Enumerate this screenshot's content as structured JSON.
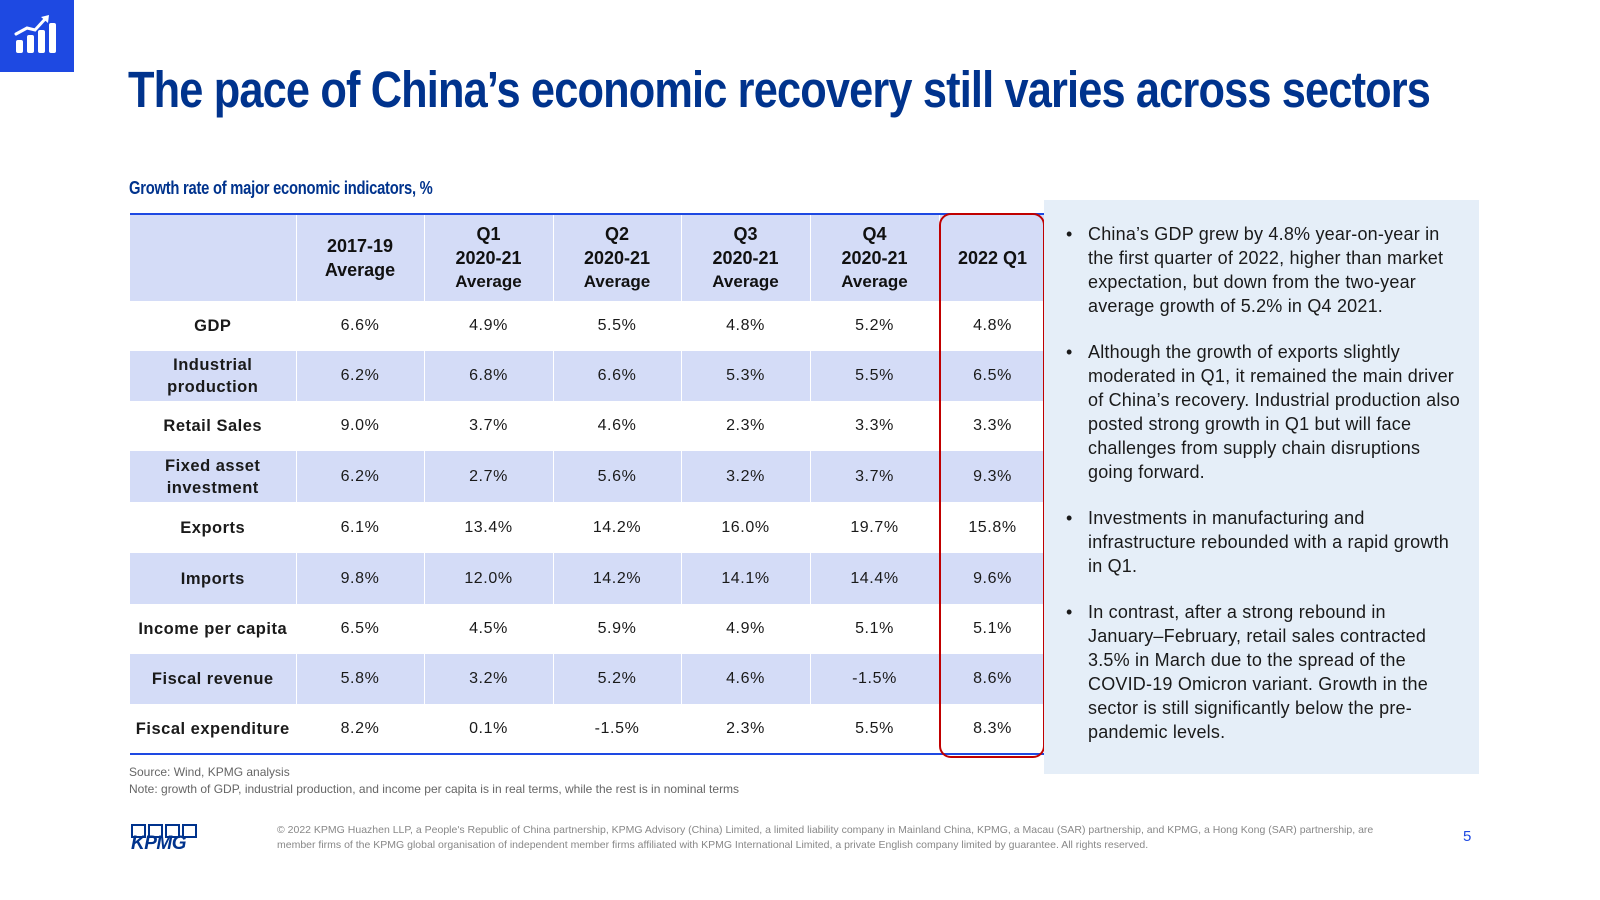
{
  "title": "The pace of China’s economic recovery still varies across sectors",
  "subtitle": "Growth rate of major economic indicators, %",
  "table": {
    "headers": [
      {
        "line1": "",
        "line2": "",
        "line3": ""
      },
      {
        "line1": "2017-19",
        "line2": "Average",
        "line3": ""
      },
      {
        "line1": "Q1",
        "line2": "2020-21",
        "line3": "Average"
      },
      {
        "line1": "Q2",
        "line2": "2020-21",
        "line3": "Average"
      },
      {
        "line1": "Q3",
        "line2": "2020-21",
        "line3": "Average"
      },
      {
        "line1": "Q4",
        "line2": "2020-21",
        "line3": "Average"
      },
      {
        "line1": "2022 Q1",
        "line2": "",
        "line3": ""
      }
    ],
    "rows": [
      {
        "label": "GDP",
        "values": [
          "6.6%",
          "4.9%",
          "5.5%",
          "4.8%",
          "5.2%",
          "4.8%"
        ]
      },
      {
        "label": "Industrial production",
        "values": [
          "6.2%",
          "6.8%",
          "6.6%",
          "5.3%",
          "5.5%",
          "6.5%"
        ]
      },
      {
        "label": "Retail Sales",
        "values": [
          "9.0%",
          "3.7%",
          "4.6%",
          "2.3%",
          "3.3%",
          "3.3%"
        ]
      },
      {
        "label": "Fixed asset investment",
        "values": [
          "6.2%",
          "2.7%",
          "5.6%",
          "3.2%",
          "3.7%",
          "9.3%"
        ]
      },
      {
        "label": "Exports",
        "values": [
          "6.1%",
          "13.4%",
          "14.2%",
          "16.0%",
          "19.7%",
          "15.8%"
        ]
      },
      {
        "label": "Imports",
        "values": [
          "9.8%",
          "12.0%",
          "14.2%",
          "14.1%",
          "14.4%",
          "9.6%"
        ]
      },
      {
        "label": "Income per capita",
        "values": [
          "6.5%",
          "4.5%",
          "5.9%",
          "4.9%",
          "5.1%",
          "5.1%"
        ]
      },
      {
        "label": "Fiscal revenue",
        "values": [
          "5.8%",
          "3.2%",
          "5.2%",
          "4.6%",
          "-1.5%",
          "8.6%"
        ]
      },
      {
        "label": "Fiscal expenditure",
        "values": [
          "8.2%",
          "0.1%",
          "-1.5%",
          "2.3%",
          "5.5%",
          "8.3%"
        ]
      }
    ]
  },
  "commentary": [
    "China’s GDP grew by 4.8% year-on-year in the first quarter of 2022, higher than market expectation, but down from the two-year average growth of 5.2% in Q4 2021.",
    "Although the growth of exports slightly moderated in Q1, it remained the main driver of China’s recovery. Industrial production also posted strong growth in Q1 but will face challenges from supply chain disruptions going forward.",
    "Investments in manufacturing and infrastructure rebounded with a rapid growth in Q1.",
    "In contrast, after a strong rebound in January–February, retail sales contracted 3.5% in March due to the spread of the COVID-19 Omicron variant. Growth in the sector is still significantly below the pre-pandemic levels."
  ],
  "source": "Source: Wind, KPMG analysis",
  "note": "Note: growth of GDP, industrial production, and income per capita is in real terms, while the rest is in nominal terms",
  "logo_text": "KPMG",
  "copyright": "© 2022 KPMG Huazhen LLP, a People's Republic of China partnership, KPMG Advisory (China) Limited, a limited liability company in Mainland China, KPMG, a Macau (SAR) partnership, and KPMG, a Hong Kong (SAR) partnership, are member firms of the KPMG global organisation of independent member firms affiliated with KPMG International Limited, a private English company limited by guarantee. All rights reserved.",
  "page_number": "5",
  "icons": {
    "corner": "bar-chart-growth-icon"
  },
  "colors": {
    "brand_blue": "#00338d",
    "accent_blue": "#1e49e2",
    "row_shade": "#d4dcf7",
    "panel_bg": "#e5eef8",
    "highlight_red": "#c00000"
  }
}
